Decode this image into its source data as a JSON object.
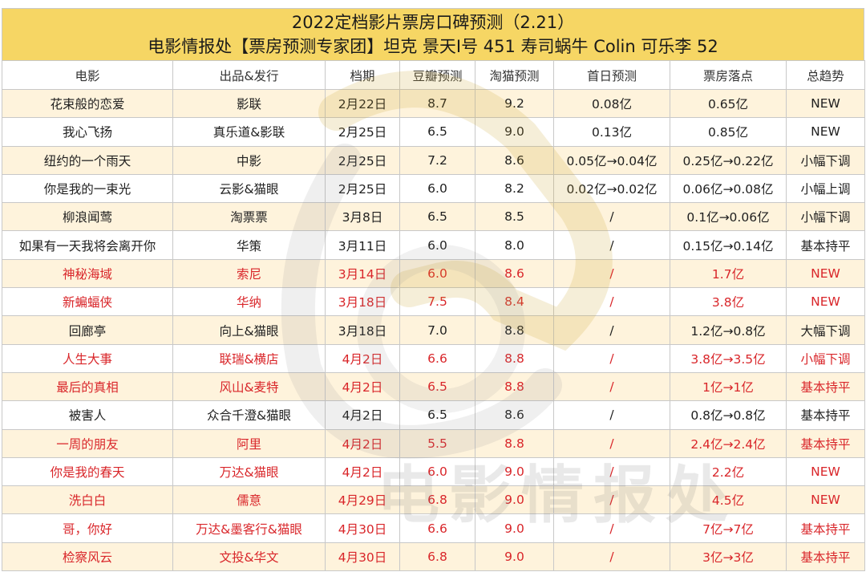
{
  "title": {
    "line1": "2022定档影片票房口碑预测（2.21）",
    "line2": "电影情报处【票房预测专家团】坦克 景天I号 451 寿司蜗牛 Colin 可乐李 52"
  },
  "watermark": {
    "text": "电影情报处"
  },
  "colors": {
    "header_yellow": "#f6d664",
    "row_tint": "#fdefce",
    "highlight_red": "#d9262a"
  },
  "table": {
    "columns": [
      "电影",
      "出品&发行",
      "档期",
      "豆瓣预测",
      "淘猫预测",
      "首日预测",
      "票房落点",
      "总趋势"
    ],
    "rows": [
      {
        "highlight": false,
        "cells": [
          "花束般的恋爱",
          "影联",
          "2月22日",
          "8.7",
          "9.2",
          "0.08亿",
          "0.65亿",
          "NEW"
        ]
      },
      {
        "highlight": false,
        "cells": [
          "我心飞扬",
          "真乐道&影联",
          "2月25日",
          "6.5",
          "9.0",
          "0.13亿",
          "0.85亿",
          "NEW"
        ]
      },
      {
        "highlight": false,
        "cells": [
          "纽约的一个雨天",
          "中影",
          "2月25日",
          "7.2",
          "8.6",
          "0.05亿→0.04亿",
          "0.25亿→0.22亿",
          "小幅下调"
        ]
      },
      {
        "highlight": false,
        "cells": [
          "你是我的一束光",
          "云影&猫眼",
          "2月25日",
          "6.0",
          "8.2",
          "0.02亿→0.02亿",
          "0.06亿→0.08亿",
          "小幅上调"
        ]
      },
      {
        "highlight": false,
        "cells": [
          "柳浪闻莺",
          "淘票票",
          "3月8日",
          "6.5",
          "8.5",
          "/",
          "0.1亿→0.06亿",
          "小幅下调"
        ]
      },
      {
        "highlight": false,
        "cells": [
          "如果有一天我将会离开你",
          "华策",
          "3月11日",
          "6.0",
          "8.0",
          "/",
          "0.15亿→0.14亿",
          "基本持平"
        ]
      },
      {
        "highlight": true,
        "cells": [
          "神秘海域",
          "索尼",
          "3月14日",
          "6.0",
          "8.6",
          "/",
          "1.7亿",
          "NEW"
        ]
      },
      {
        "highlight": true,
        "cells": [
          "新蝙蝠侠",
          "华纳",
          "3月18日",
          "7.5",
          "8.4",
          "/",
          "3.8亿",
          "NEW"
        ]
      },
      {
        "highlight": false,
        "cells": [
          "回廊亭",
          "向上&猫眼",
          "3月18日",
          "7.0",
          "8.8",
          "/",
          "1.2亿→0.8亿",
          "大幅下调"
        ]
      },
      {
        "highlight": true,
        "cells": [
          "人生大事",
          "联瑞&横店",
          "4月2日",
          "6.6",
          "8.8",
          "/",
          "3.8亿→3.5亿",
          "小幅下调"
        ]
      },
      {
        "highlight": true,
        "cells": [
          "最后的真相",
          "风山&麦特",
          "4月2日",
          "6.5",
          "8.8",
          "/",
          "1亿→1亿",
          "基本持平"
        ]
      },
      {
        "highlight": false,
        "cells": [
          "被害人",
          "众合千澄&猫眼",
          "4月2日",
          "6.5",
          "8.6",
          "/",
          "0.8亿→0.8亿",
          "基本持平"
        ]
      },
      {
        "highlight": true,
        "cells": [
          "一周的朋友",
          "阿里",
          "4月2日",
          "5.5",
          "8.8",
          "/",
          "2.4亿→2.4亿",
          "基本持平"
        ]
      },
      {
        "highlight": true,
        "cells": [
          "你是我的春天",
          "万达&猫眼",
          "4月2日",
          "6.0",
          "9.0",
          "/",
          "2.2亿",
          "NEW"
        ]
      },
      {
        "highlight": true,
        "cells": [
          "洗白白",
          "儒意",
          "4月29日",
          "6.8",
          "9.0",
          "/",
          "4.5亿",
          "NEW"
        ]
      },
      {
        "highlight": true,
        "cells": [
          "哥，你好",
          "万达&墨客行&猫眼",
          "4月30日",
          "6.6",
          "9.0",
          "/",
          "7亿→7亿",
          "基本持平"
        ]
      },
      {
        "highlight": true,
        "cells": [
          "检察风云",
          "文投&华文",
          "4月30日",
          "6.8",
          "9.0",
          "/",
          "3亿→3亿",
          "基本持平"
        ]
      }
    ]
  }
}
